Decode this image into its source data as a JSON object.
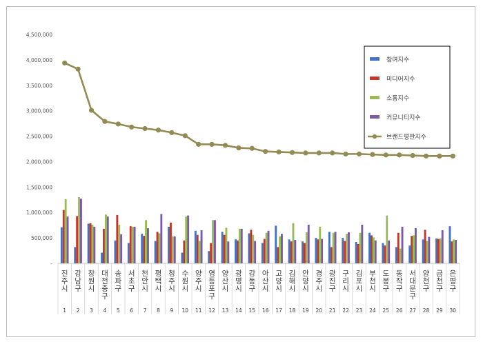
{
  "chart_data": {
    "type": "bar",
    "title": "",
    "xlabel": "",
    "ylabel": "",
    "ylim": [
      0,
      4500000
    ],
    "yticks": [
      "-",
      "500,000",
      "1,000,000",
      "1,500,000",
      "2,000,000",
      "2,500,000",
      "3,000,000",
      "3,500,000",
      "4,000,000",
      "4,500,000"
    ],
    "categories": [
      "진주시",
      "강남구",
      "창원시",
      "대전중구",
      "송파구",
      "서초구",
      "천안시",
      "평택시",
      "청주시",
      "수원시",
      "양주시",
      "영등포구",
      "양산시",
      "광명시",
      "강동구",
      "아산시",
      "고양시",
      "김해시",
      "안양시",
      "경주시",
      "광진구",
      "구리시",
      "김포시",
      "부천시",
      "도봉구",
      "동작구",
      "서대문구",
      "양천구",
      "금천구",
      "은평구"
    ],
    "index_labels": [
      "1",
      "2",
      "3",
      "4",
      "5",
      "6",
      "7",
      "8",
      "9",
      "10",
      "11",
      "12",
      "13",
      "14",
      "15",
      "16",
      "17",
      "18",
      "19",
      "20",
      "21",
      "22",
      "23",
      "24",
      "25",
      "26",
      "27",
      "28",
      "29",
      "30"
    ],
    "legend_position": "top-right",
    "grid": false,
    "series": [
      {
        "name": "참여지수",
        "kind": "bar",
        "color": "#4472c4",
        "values": [
          710000,
          320000,
          780000,
          210000,
          450000,
          400000,
          580000,
          440000,
          720000,
          210000,
          640000,
          240000,
          620000,
          470000,
          590000,
          400000,
          740000,
          470000,
          430000,
          500000,
          620000,
          500000,
          420000,
          600000,
          400000,
          320000,
          350000,
          470000,
          490000,
          730000
        ]
      },
      {
        "name": "미디어지수",
        "kind": "bar",
        "color": "#c0392b",
        "values": [
          1050000,
          930000,
          790000,
          680000,
          950000,
          730000,
          540000,
          620000,
          800000,
          450000,
          560000,
          400000,
          560000,
          450000,
          660000,
          480000,
          320000,
          430000,
          400000,
          470000,
          320000,
          440000,
          380000,
          550000,
          350000,
          600000,
          540000,
          660000,
          480000,
          430000
        ]
      },
      {
        "name": "소통지수",
        "kind": "bar",
        "color": "#9bbb59",
        "values": [
          1260000,
          1300000,
          760000,
          960000,
          760000,
          720000,
          850000,
          590000,
          530000,
          920000,
          440000,
          850000,
          700000,
          680000,
          560000,
          600000,
          530000,
          790000,
          610000,
          720000,
          600000,
          580000,
          600000,
          510000,
          940000,
          290000,
          550000,
          440000,
          490000,
          470000
        ]
      },
      {
        "name": "커뮤니티지수",
        "kind": "bar",
        "color": "#7b5aa6",
        "values": [
          920000,
          1270000,
          720000,
          920000,
          570000,
          720000,
          690000,
          970000,
          530000,
          940000,
          650000,
          850000,
          430000,
          680000,
          440000,
          640000,
          580000,
          460000,
          760000,
          480000,
          620000,
          610000,
          760000,
          450000,
          450000,
          720000,
          690000,
          520000,
          650000,
          460000
        ]
      },
      {
        "name": "브랜드평판지수",
        "kind": "line",
        "color": "#948a54",
        "values": [
          3940000,
          3820000,
          3010000,
          2790000,
          2740000,
          2680000,
          2650000,
          2620000,
          2570000,
          2510000,
          2340000,
          2340000,
          2320000,
          2270000,
          2260000,
          2200000,
          2190000,
          2180000,
          2170000,
          2170000,
          2170000,
          2150000,
          2150000,
          2140000,
          2130000,
          2130000,
          2120000,
          2110000,
          2110000,
          2110000
        ]
      }
    ]
  }
}
